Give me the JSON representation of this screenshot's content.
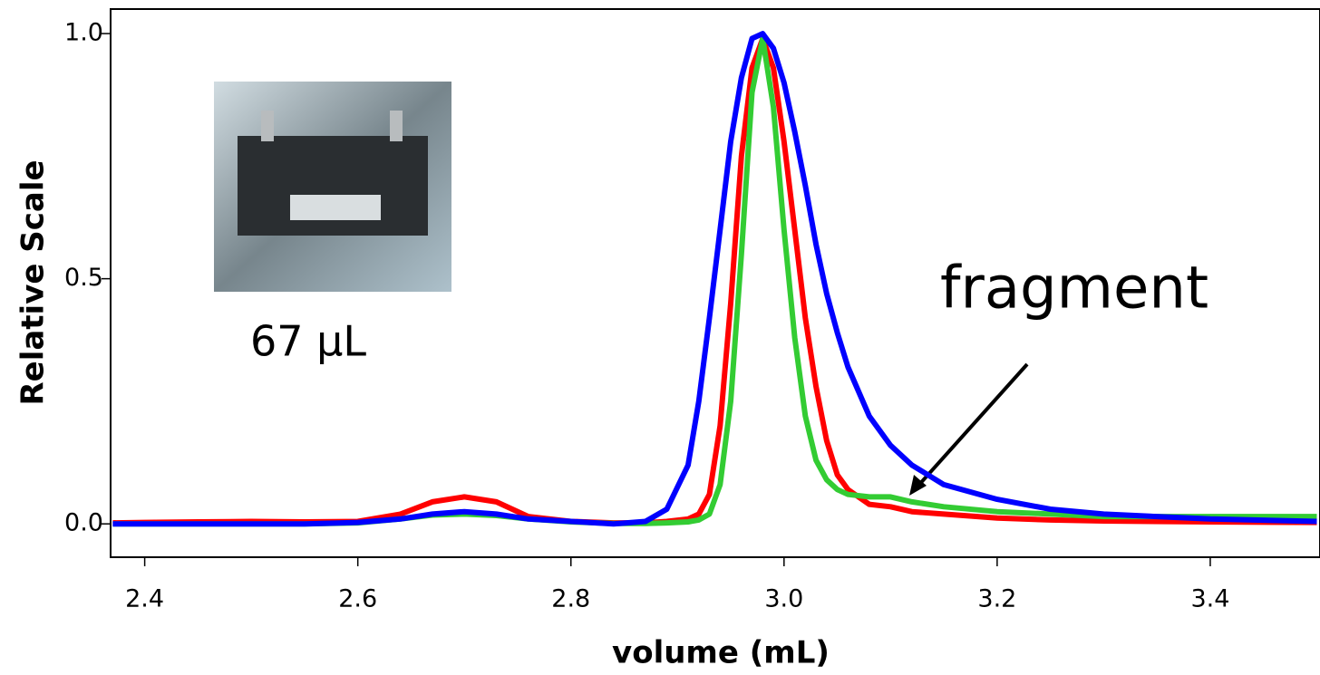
{
  "chart_data": {
    "type": "line",
    "xlabel": "volume (mL)",
    "ylabel": "Relative Scale",
    "annotations": [
      "fragment",
      "67 µL"
    ],
    "xlim": [
      2.368,
      3.503
    ],
    "ylim": [
      -0.068,
      1.05
    ],
    "xticks": [
      2.4,
      2.6,
      2.8,
      {
        "value": 3.0,
        "label": "3.0"
      },
      3.2,
      3.4
    ],
    "yticks": [
      {
        "value": 0,
        "label": "0.0"
      },
      0.5,
      {
        "value": 1,
        "label": "1.0"
      }
    ],
    "x": [
      2.37,
      2.4,
      2.45,
      2.5,
      2.55,
      2.6,
      2.64,
      2.67,
      2.7,
      2.73,
      2.76,
      2.8,
      2.84,
      2.87,
      2.89,
      2.91,
      2.92,
      2.93,
      2.94,
      2.95,
      2.96,
      2.97,
      2.98,
      2.99,
      3.0,
      3.01,
      3.02,
      3.03,
      3.04,
      3.05,
      3.06,
      3.08,
      3.1,
      3.12,
      3.15,
      3.2,
      3.25,
      3.3,
      3.4,
      3.5
    ],
    "series": [
      {
        "color": "#ff0000",
        "values": [
          0.002,
          0.003,
          0.004,
          0.005,
          0.004,
          0.005,
          0.02,
          0.045,
          0.055,
          0.045,
          0.015,
          0.005,
          0.002,
          0.002,
          0.005,
          0.01,
          0.02,
          0.06,
          0.2,
          0.45,
          0.75,
          0.93,
          0.99,
          0.93,
          0.78,
          0.6,
          0.42,
          0.28,
          0.17,
          0.1,
          0.07,
          0.04,
          0.035,
          0.025,
          0.02,
          0.012,
          0.008,
          0.006,
          0.004,
          0.003
        ]
      },
      {
        "color": "#33cc33",
        "values": [
          0,
          0,
          0,
          0,
          0,
          0.002,
          0.01,
          0.018,
          0.02,
          0.017,
          0.01,
          0.004,
          0.001,
          0.001,
          0.002,
          0.004,
          0.008,
          0.02,
          0.08,
          0.25,
          0.55,
          0.88,
          0.99,
          0.85,
          0.6,
          0.38,
          0.22,
          0.13,
          0.09,
          0.07,
          0.06,
          0.055,
          0.055,
          0.045,
          0.035,
          0.025,
          0.02,
          0.015,
          0.015,
          0.015
        ]
      },
      {
        "color": "#0000ff",
        "values": [
          0,
          0,
          0,
          0,
          0,
          0.003,
          0.01,
          0.02,
          0.025,
          0.02,
          0.01,
          0.005,
          0,
          0.005,
          0.03,
          0.12,
          0.25,
          0.42,
          0.6,
          0.78,
          0.91,
          0.99,
          1.0,
          0.97,
          0.9,
          0.8,
          0.69,
          0.57,
          0.47,
          0.39,
          0.32,
          0.22,
          0.16,
          0.12,
          0.08,
          0.05,
          0.03,
          0.02,
          0.01,
          0.005
        ]
      }
    ]
  }
}
